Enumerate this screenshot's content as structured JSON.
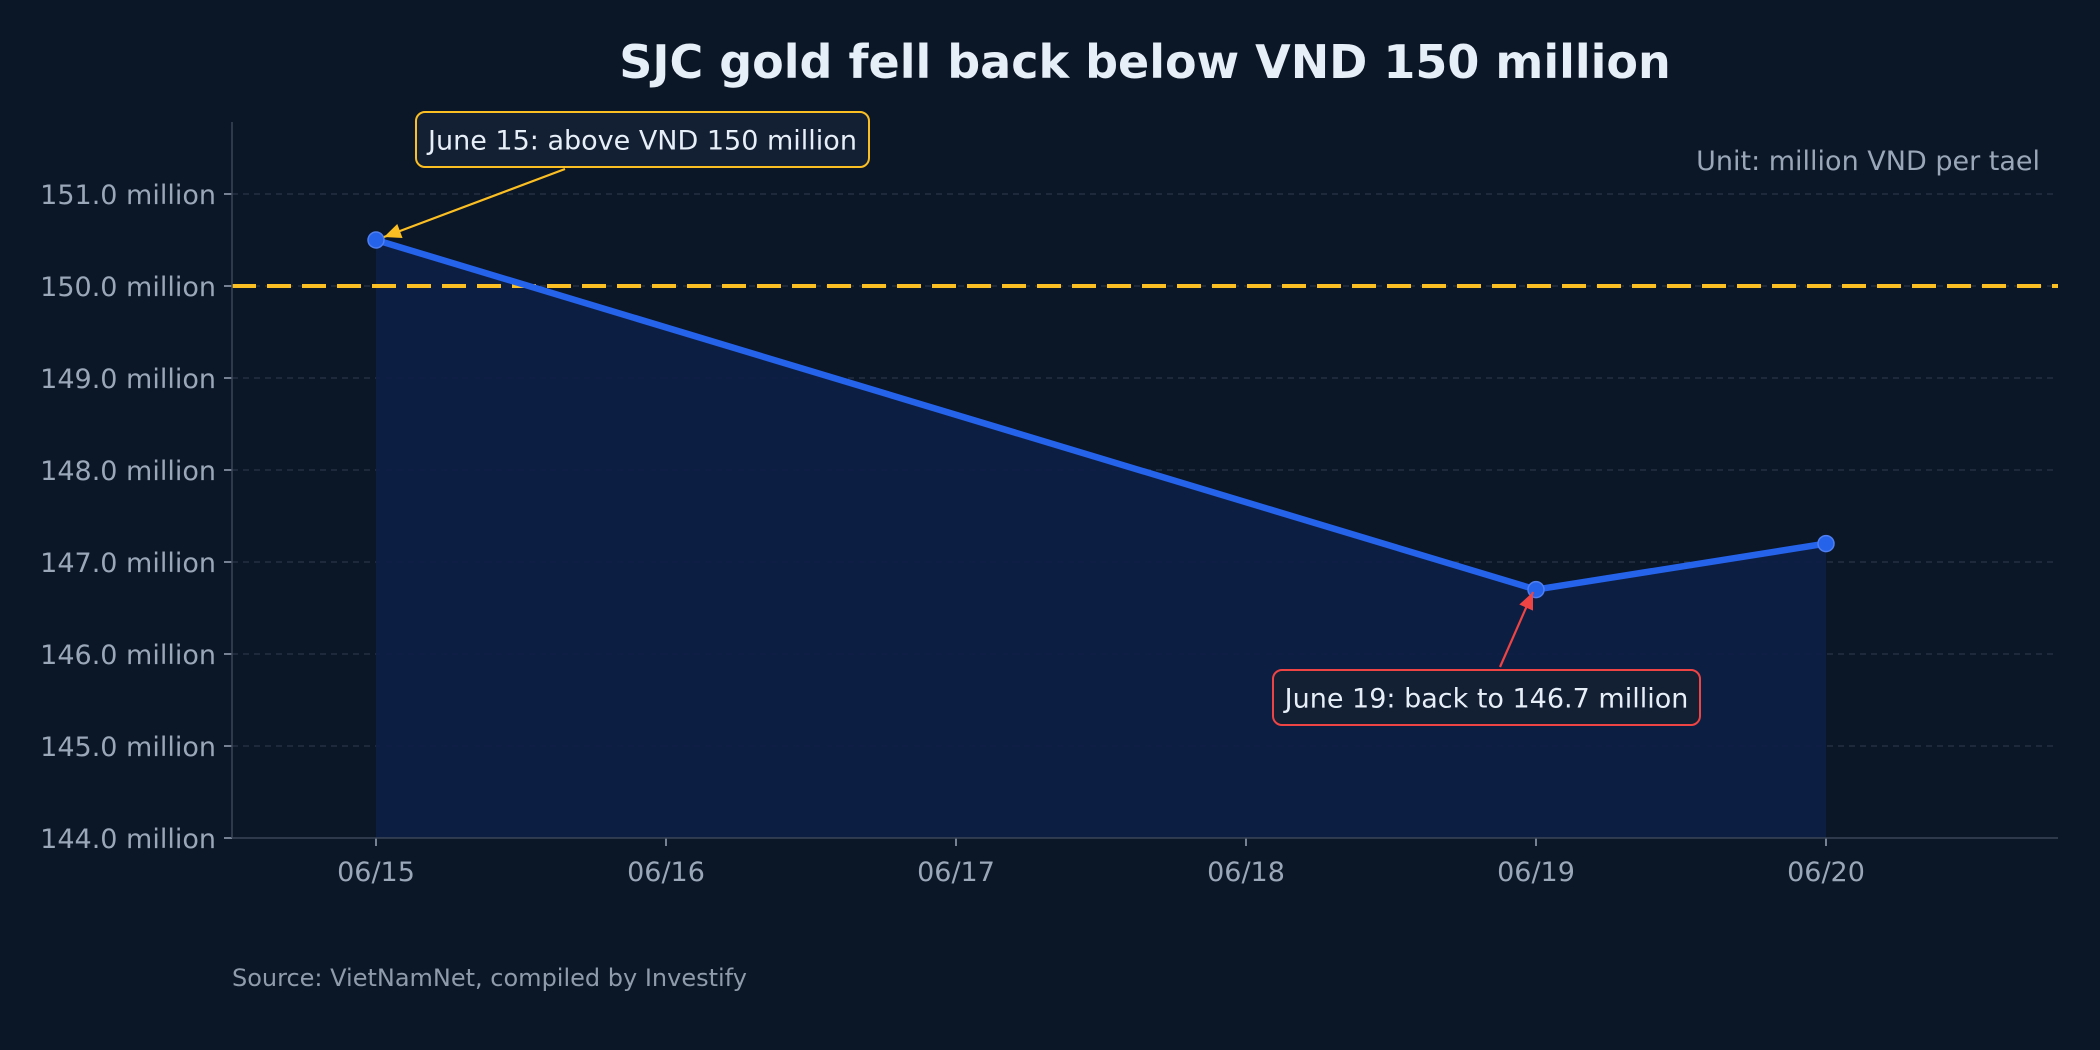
{
  "chart_data": {
    "type": "area",
    "title": "SJC gold fell back below VND 150 million",
    "unit_label": "Unit: million VND per tael",
    "source": "Source: VietNamNet, compiled by Investify",
    "x": [
      "06/15",
      "06/16",
      "06/17",
      "06/18",
      "06/19",
      "06/20"
    ],
    "series": [
      {
        "values": [
          150.5,
          null,
          null,
          null,
          146.7,
          147.2
        ],
        "color": "#2563eb",
        "fill": "#0e1f45"
      }
    ],
    "points": [
      {
        "x": "06/15",
        "y": 150.5
      },
      {
        "x": "06/19",
        "y": 146.7
      },
      {
        "x": "06/20",
        "y": 147.2
      }
    ],
    "ylim": [
      144.0,
      151.8
    ],
    "y_ticks": [
      144.0,
      145.0,
      146.0,
      147.0,
      148.0,
      149.0,
      150.0,
      151.0
    ],
    "y_tick_suffix": " million",
    "reference_line": {
      "y": 150.0,
      "color": "#fbbf24",
      "style": "dashed"
    },
    "grid": "horizontal dashed",
    "annotations": [
      {
        "text": "June 15: above VND 150 million",
        "x": "06/15",
        "y": 150.5,
        "color": "#fbbf24"
      },
      {
        "text": "June 19: back to 146.7 million",
        "x": "06/19",
        "y": 146.7,
        "color": "#ef4444"
      }
    ],
    "colors": {
      "background": "#0b1626",
      "line": "#2563eb",
      "area": "#0e1f45",
      "grid": "#2a3648",
      "axis": "#3b4658",
      "text": "#e6eef8",
      "muted": "#9aa7b8"
    }
  }
}
